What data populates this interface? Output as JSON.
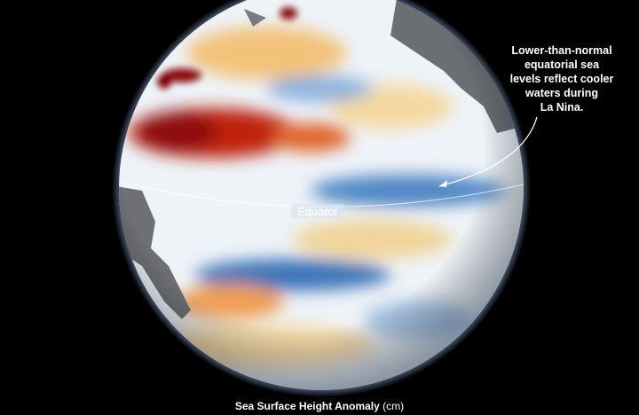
{
  "annotation_lines": [
    "Lower-than-normal",
    "equatorial sea",
    "levels reflect cooler",
    "waters during",
    "La Nina."
  ],
  "equator_label": "Equator",
  "legend": {
    "title": "Sea Surface Height Anomaly",
    "unit": "(cm)"
  }
}
